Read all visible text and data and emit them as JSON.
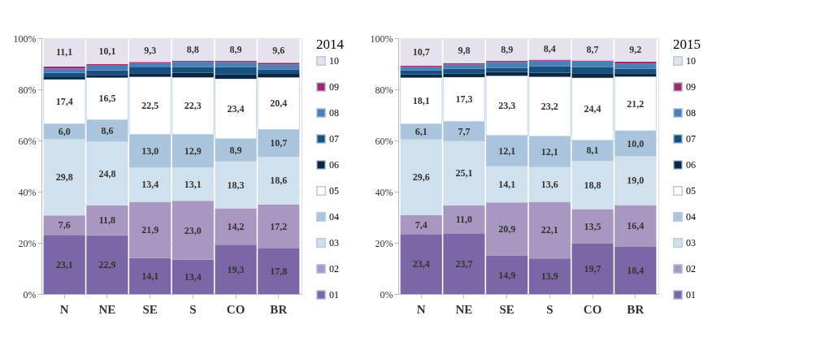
{
  "chart_data": [
    {
      "type": "bar",
      "stacked": true,
      "legend_title": "2014",
      "legend": "right",
      "grid": "y",
      "data_labels": false,
      "categories": [
        "N",
        "NE",
        "SE",
        "S",
        "CO",
        "BR"
      ],
      "ylim": [
        0,
        100
      ],
      "yticks": [
        {
          "value": 0,
          "label": "0%"
        },
        {
          "value": 20,
          "label": "20%"
        },
        {
          "value": 40,
          "label": "40%"
        },
        {
          "value": 60,
          "label": "60%"
        },
        {
          "value": 80,
          "label": "80%"
        },
        {
          "value": 100,
          "label": "100%"
        }
      ],
      "series": [
        {
          "name": "01",
          "color": "#7b67a5",
          "values": [
            23.1,
            22.9,
            14.1,
            13.4,
            19.3,
            17.8
          ],
          "value_labels": [
            "23,1",
            "22,9",
            "14,1",
            "13,4",
            "19,3",
            "17,8"
          ]
        },
        {
          "name": "02",
          "color": "#a897c0",
          "values": [
            7.6,
            11.8,
            21.9,
            23.0,
            14.2,
            17.2
          ],
          "value_labels": [
            "7,6",
            "11,8",
            "21,9",
            "23,0",
            "14,2",
            "17,2"
          ]
        },
        {
          "name": "03",
          "color": "#d0e0ec",
          "values": [
            29.8,
            24.8,
            13.4,
            13.1,
            18.3,
            18.6
          ],
          "value_labels": [
            "29,8",
            "24,8",
            "13,4",
            "13,1",
            "18,3",
            "18,6"
          ]
        },
        {
          "name": "04",
          "color": "#aac4dc",
          "values": [
            6.0,
            8.6,
            13.0,
            12.9,
            8.9,
            10.7
          ],
          "value_labels": [
            "6,0",
            "8,6",
            "13,0",
            "12,9",
            "8,9",
            "10,7"
          ]
        },
        {
          "name": "05",
          "color": "#ffffff",
          "values": [
            17.4,
            16.5,
            22.5,
            22.3,
            23.4,
            20.4
          ],
          "value_labels": [
            "17,4",
            "16,5",
            "22,5",
            "22,3",
            "23,4",
            "20,4"
          ]
        },
        {
          "name": "06",
          "color": "#0b2545",
          "values": [
            0.9,
            1.0,
            1.4,
            1.8,
            1.7,
            1.3
          ]
        },
        {
          "name": "07",
          "color": "#15507f",
          "values": [
            1.6,
            1.8,
            2.3,
            2.2,
            2.9,
            1.8
          ]
        },
        {
          "name": "08",
          "color": "#4a7fba",
          "values": [
            1.7,
            1.9,
            1.6,
            2.0,
            1.9,
            2.0
          ]
        },
        {
          "name": "09",
          "color": "#9e2a6e",
          "values": [
            0.8,
            0.6,
            0.5,
            0.5,
            0.5,
            0.6
          ]
        },
        {
          "name": "10",
          "color": "#e6e1ec",
          "values": [
            11.1,
            10.1,
            9.3,
            8.8,
            8.9,
            9.6
          ],
          "value_labels": [
            "11,1",
            "10,1",
            "9,3",
            "8,8",
            "8,9",
            "9,6"
          ]
        }
      ]
    },
    {
      "type": "bar",
      "stacked": true,
      "legend_title": "2015",
      "legend": "right",
      "grid": "y",
      "data_labels": false,
      "categories": [
        "N",
        "NE",
        "SE",
        "S",
        "CO",
        "BR"
      ],
      "ylim": [
        0,
        100
      ],
      "yticks": [
        {
          "value": 0,
          "label": "0%"
        },
        {
          "value": 20,
          "label": "20%"
        },
        {
          "value": 40,
          "label": "40%"
        },
        {
          "value": 60,
          "label": "60%"
        },
        {
          "value": 80,
          "label": "80%"
        },
        {
          "value": 100,
          "label": "100%"
        }
      ],
      "series": [
        {
          "name": "01",
          "color": "#7b67a5",
          "values": [
            23.4,
            23.7,
            14.9,
            13.9,
            19.7,
            18.4
          ],
          "value_labels": [
            "23,4",
            "23,7",
            "14,9",
            "13,9",
            "19,7",
            "18,4"
          ]
        },
        {
          "name": "02",
          "color": "#a897c0",
          "values": [
            7.4,
            11.0,
            20.9,
            22.1,
            13.5,
            16.4
          ],
          "value_labels": [
            "7,4",
            "11,0",
            "20,9",
            "22,1",
            "13,5",
            "16,4"
          ]
        },
        {
          "name": "03",
          "color": "#d0e0ec",
          "values": [
            29.6,
            25.1,
            14.1,
            13.6,
            18.8,
            19.0
          ],
          "value_labels": [
            "29,6",
            "25,1",
            "14,1",
            "13,6",
            "18,8",
            "19,0"
          ]
        },
        {
          "name": "04",
          "color": "#aac4dc",
          "values": [
            6.1,
            7.7,
            12.1,
            12.1,
            8.1,
            10.0
          ],
          "value_labels": [
            "6,1",
            "7,7",
            "12,1",
            "12,1",
            "8,1",
            "10,0"
          ]
        },
        {
          "name": "05",
          "color": "#ffffff",
          "values": [
            18.1,
            17.3,
            23.3,
            23.2,
            24.4,
            21.2
          ],
          "value_labels": [
            "18,1",
            "17,3",
            "23,3",
            "23,2",
            "24,4",
            "21,2"
          ]
        },
        {
          "name": "06",
          "color": "#0b2545",
          "values": [
            1.2,
            1.3,
            1.5,
            1.6,
            1.8,
            1.3
          ]
        },
        {
          "name": "07",
          "color": "#15507f",
          "values": [
            1.6,
            1.9,
            1.6,
            2.5,
            2.4,
            1.8
          ]
        },
        {
          "name": "08",
          "color": "#4a7fba",
          "values": [
            1.3,
            1.7,
            2.2,
            2.2,
            2.2,
            2.0
          ]
        },
        {
          "name": "09",
          "color": "#9e2a6e",
          "values": [
            0.6,
            0.5,
            0.5,
            0.4,
            0.4,
            0.7
          ]
        },
        {
          "name": "10",
          "color": "#e6e1ec",
          "values": [
            10.7,
            9.8,
            8.9,
            8.4,
            8.7,
            9.2
          ],
          "value_labels": [
            "10,7",
            "9,8",
            "8,9",
            "8,4",
            "8,7",
            "9,2"
          ]
        }
      ]
    }
  ]
}
